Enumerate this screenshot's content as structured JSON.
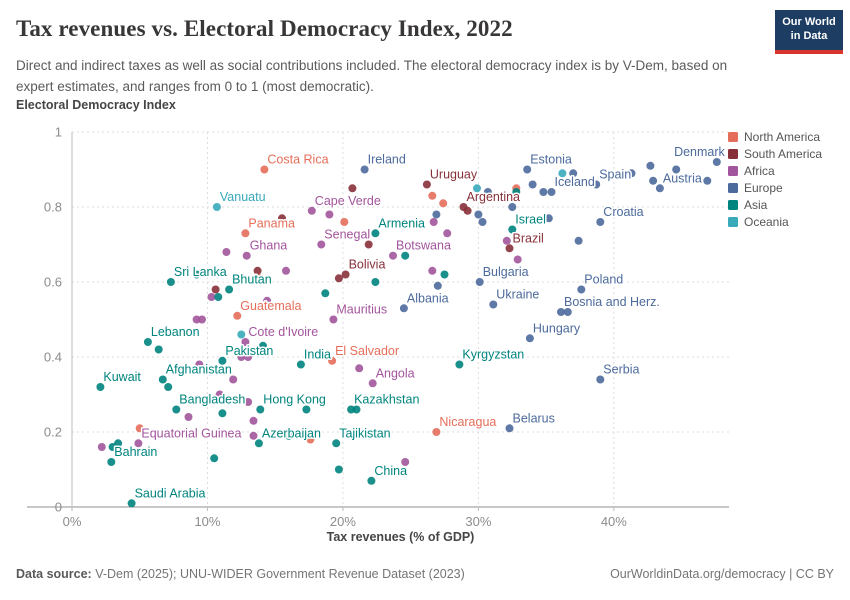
{
  "header": {
    "title": "Tax revenues vs. Electoral Democracy Index, 2022",
    "subtitle": "Direct and indirect taxes as well as social contributions included. The electoral democracy index is by V-Dem, based on expert estimates, and ranges from 0 to 1 (most democratic).",
    "logo": {
      "line1": "Our World",
      "line2": "in Data"
    }
  },
  "footer": {
    "source_label": "Data source:",
    "source_text": " V-Dem (2025); UNU-WIDER Government Revenue Dataset (2023)",
    "right_text": "OurWorldinData.org/democracy | CC BY"
  },
  "chart_data": {
    "type": "scatter",
    "title": "Tax revenues vs. Electoral Democracy Index, 2022",
    "xlabel": "Tax revenues (% of GDP)",
    "ylabel": "Electoral Democracy Index",
    "xlim": [
      0,
      48.5
    ],
    "ylim": [
      0,
      1
    ],
    "x_tick_values": [
      0,
      10,
      20,
      30,
      40
    ],
    "x_tick_labels": [
      "0%",
      "10%",
      "20%",
      "30%",
      "40%"
    ],
    "y_tick_values": [
      0,
      0.2,
      0.4,
      0.6,
      0.8,
      1
    ],
    "y_tick_labels": [
      "0",
      "0.2",
      "0.4",
      "0.6",
      "0.8",
      "1"
    ],
    "grid": "dashed",
    "legend_position": "right",
    "legend": [
      {
        "name": "North America",
        "color": "#E56E5A"
      },
      {
        "name": "South America",
        "color": "#883039"
      },
      {
        "name": "Africa",
        "color": "#A2559C"
      },
      {
        "name": "Europe",
        "color": "#4C6A9C"
      },
      {
        "name": "Asia",
        "color": "#00847E"
      },
      {
        "name": "Oceania",
        "color": "#38AABA"
      }
    ],
    "series": [
      {
        "name": "North America",
        "color": "#E56E5A",
        "points": [
          {
            "x": 14.2,
            "y": 0.9,
            "label": "Costa Rica"
          },
          {
            "x": 12.8,
            "y": 0.73,
            "label": "Panama"
          },
          {
            "x": 12.2,
            "y": 0.51,
            "label": "Guatemala"
          },
          {
            "x": 19.2,
            "y": 0.39,
            "label": "El Salvador"
          },
          {
            "x": 26.9,
            "y": 0.2,
            "label": "Nicaragua"
          },
          {
            "x": 26.6,
            "y": 0.83
          },
          {
            "x": 27.4,
            "y": 0.81
          },
          {
            "x": 32.8,
            "y": 0.85
          },
          {
            "x": 20.1,
            "y": 0.76
          },
          {
            "x": 13.8,
            "y": 0.61
          },
          {
            "x": 5.0,
            "y": 0.21
          },
          {
            "x": 17.6,
            "y": 0.18
          }
        ]
      },
      {
        "name": "South America",
        "color": "#883039",
        "points": [
          {
            "x": 26.2,
            "y": 0.86,
            "label": "Uruguay"
          },
          {
            "x": 28.9,
            "y": 0.8,
            "label": "Argentina"
          },
          {
            "x": 32.3,
            "y": 0.69,
            "label": "Brazil"
          },
          {
            "x": 20.2,
            "y": 0.62,
            "label": "Bolivia"
          },
          {
            "x": 29.2,
            "y": 0.79
          },
          {
            "x": 20.7,
            "y": 0.85
          },
          {
            "x": 15.5,
            "y": 0.77
          },
          {
            "x": 21.9,
            "y": 0.7
          },
          {
            "x": 19.7,
            "y": 0.61
          },
          {
            "x": 13.7,
            "y": 0.63
          },
          {
            "x": 10.6,
            "y": 0.58
          }
        ]
      },
      {
        "name": "Africa",
        "color": "#A2559C",
        "points": [
          {
            "x": 17.7,
            "y": 0.79,
            "label": "Cape Verde"
          },
          {
            "x": 18.4,
            "y": 0.7,
            "label": "Senegal"
          },
          {
            "x": 12.9,
            "y": 0.67,
            "label": "Ghana"
          },
          {
            "x": 23.7,
            "y": 0.67,
            "label": "Botswana"
          },
          {
            "x": 19.3,
            "y": 0.5,
            "label": "Mauritius"
          },
          {
            "x": 12.8,
            "y": 0.44,
            "label": "Cote d'Ivoire"
          },
          {
            "x": 22.2,
            "y": 0.33,
            "label": "Angola"
          },
          {
            "x": 4.9,
            "y": 0.17,
            "label": "Equatorial Guinea"
          },
          {
            "x": 19.0,
            "y": 0.78
          },
          {
            "x": 11.4,
            "y": 0.68
          },
          {
            "x": 27.7,
            "y": 0.73
          },
          {
            "x": 32.1,
            "y": 0.71
          },
          {
            "x": 32.9,
            "y": 0.66
          },
          {
            "x": 15.8,
            "y": 0.63
          },
          {
            "x": 26.6,
            "y": 0.63
          },
          {
            "x": 26.7,
            "y": 0.76
          },
          {
            "x": 14.4,
            "y": 0.55
          },
          {
            "x": 9.2,
            "y": 0.5
          },
          {
            "x": 9.6,
            "y": 0.5
          },
          {
            "x": 10.3,
            "y": 0.56
          },
          {
            "x": 12.5,
            "y": 0.4
          },
          {
            "x": 13.0,
            "y": 0.4
          },
          {
            "x": 9.4,
            "y": 0.38
          },
          {
            "x": 11.9,
            "y": 0.34
          },
          {
            "x": 21.2,
            "y": 0.37
          },
          {
            "x": 8.6,
            "y": 0.24
          },
          {
            "x": 10.9,
            "y": 0.3
          },
          {
            "x": 13.0,
            "y": 0.28
          },
          {
            "x": 13.4,
            "y": 0.23
          },
          {
            "x": 13.4,
            "y": 0.19
          },
          {
            "x": 2.2,
            "y": 0.16
          },
          {
            "x": 24.6,
            "y": 0.12
          }
        ]
      },
      {
        "name": "Europe",
        "color": "#4C6A9C",
        "points": [
          {
            "x": 21.6,
            "y": 0.9,
            "label": "Ireland"
          },
          {
            "x": 33.6,
            "y": 0.9,
            "label": "Estonia"
          },
          {
            "x": 47.6,
            "y": 0.92,
            "label": "Denmark",
            "anchor": "end"
          },
          {
            "x": 38.7,
            "y": 0.86,
            "label": "Spain"
          },
          {
            "x": 43.4,
            "y": 0.85,
            "label": "Austria"
          },
          {
            "x": 35.4,
            "y": 0.84,
            "label": "Iceland"
          },
          {
            "x": 39.0,
            "y": 0.76,
            "label": "Croatia"
          },
          {
            "x": 30.1,
            "y": 0.6,
            "label": "Bulgaria"
          },
          {
            "x": 37.6,
            "y": 0.58,
            "label": "Poland"
          },
          {
            "x": 24.5,
            "y": 0.53,
            "label": "Albania"
          },
          {
            "x": 31.1,
            "y": 0.54,
            "label": "Ukraine"
          },
          {
            "x": 36.1,
            "y": 0.52,
            "label": "Bosnia and Herz."
          },
          {
            "x": 33.8,
            "y": 0.45,
            "label": "Hungary"
          },
          {
            "x": 39.0,
            "y": 0.34,
            "label": "Serbia"
          },
          {
            "x": 32.3,
            "y": 0.21,
            "label": "Belarus"
          },
          {
            "x": 42.7,
            "y": 0.91
          },
          {
            "x": 44.6,
            "y": 0.9
          },
          {
            "x": 41.3,
            "y": 0.89
          },
          {
            "x": 42.9,
            "y": 0.87
          },
          {
            "x": 46.9,
            "y": 0.87
          },
          {
            "x": 34.8,
            "y": 0.84
          },
          {
            "x": 37.0,
            "y": 0.89
          },
          {
            "x": 34.0,
            "y": 0.86
          },
          {
            "x": 30.7,
            "y": 0.84
          },
          {
            "x": 32.5,
            "y": 0.8
          },
          {
            "x": 35.2,
            "y": 0.77
          },
          {
            "x": 37.4,
            "y": 0.71
          },
          {
            "x": 26.9,
            "y": 0.78
          },
          {
            "x": 30.0,
            "y": 0.78
          },
          {
            "x": 30.3,
            "y": 0.76
          },
          {
            "x": 27.0,
            "y": 0.59
          },
          {
            "x": 36.6,
            "y": 0.52
          }
        ]
      },
      {
        "name": "Asia",
        "color": "#00847E",
        "points": [
          {
            "x": 22.4,
            "y": 0.73,
            "label": "Armenia"
          },
          {
            "x": 32.5,
            "y": 0.74,
            "label": "Israel"
          },
          {
            "x": 7.3,
            "y": 0.6,
            "label": "Sri Lanka"
          },
          {
            "x": 11.6,
            "y": 0.58,
            "label": "Bhutan"
          },
          {
            "x": 5.6,
            "y": 0.44,
            "label": "Lebanon"
          },
          {
            "x": 11.1,
            "y": 0.39,
            "label": "Pakistan"
          },
          {
            "x": 16.9,
            "y": 0.38,
            "label": "India"
          },
          {
            "x": 6.7,
            "y": 0.34,
            "label": "Afghanistan"
          },
          {
            "x": 2.1,
            "y": 0.32,
            "label": "Kuwait"
          },
          {
            "x": 7.7,
            "y": 0.26,
            "label": "Bangladesh"
          },
          {
            "x": 13.9,
            "y": 0.26,
            "label": "Hong Kong"
          },
          {
            "x": 20.6,
            "y": 0.26,
            "label": "Kazakhstan"
          },
          {
            "x": 28.6,
            "y": 0.38,
            "label": "Kyrgyzstan"
          },
          {
            "x": 13.8,
            "y": 0.17,
            "label": "Azerbaijan"
          },
          {
            "x": 19.5,
            "y": 0.17,
            "label": "Tajikistan"
          },
          {
            "x": 2.9,
            "y": 0.12,
            "label": "Bahrain"
          },
          {
            "x": 22.1,
            "y": 0.07,
            "label": "China"
          },
          {
            "x": 4.4,
            "y": 0.01,
            "label": "Saudi Arabia"
          },
          {
            "x": 32.8,
            "y": 0.84
          },
          {
            "x": 24.6,
            "y": 0.67
          },
          {
            "x": 22.4,
            "y": 0.6
          },
          {
            "x": 9.2,
            "y": 0.62
          },
          {
            "x": 10.8,
            "y": 0.56
          },
          {
            "x": 18.7,
            "y": 0.57
          },
          {
            "x": 27.5,
            "y": 0.62
          },
          {
            "x": 6.4,
            "y": 0.42
          },
          {
            "x": 14.1,
            "y": 0.43
          },
          {
            "x": 7.1,
            "y": 0.32
          },
          {
            "x": 11.1,
            "y": 0.25
          },
          {
            "x": 17.3,
            "y": 0.26
          },
          {
            "x": 21.0,
            "y": 0.26
          },
          {
            "x": 16.0,
            "y": 0.19
          },
          {
            "x": 3.0,
            "y": 0.16
          },
          {
            "x": 3.4,
            "y": 0.17
          },
          {
            "x": 10.5,
            "y": 0.13
          },
          {
            "x": 19.7,
            "y": 0.1
          }
        ]
      },
      {
        "name": "Oceania",
        "color": "#38AABA",
        "points": [
          {
            "x": 10.7,
            "y": 0.8,
            "label": "Vanuatu"
          },
          {
            "x": 29.9,
            "y": 0.85
          },
          {
            "x": 36.2,
            "y": 0.89
          },
          {
            "x": 12.5,
            "y": 0.46
          }
        ]
      }
    ]
  }
}
